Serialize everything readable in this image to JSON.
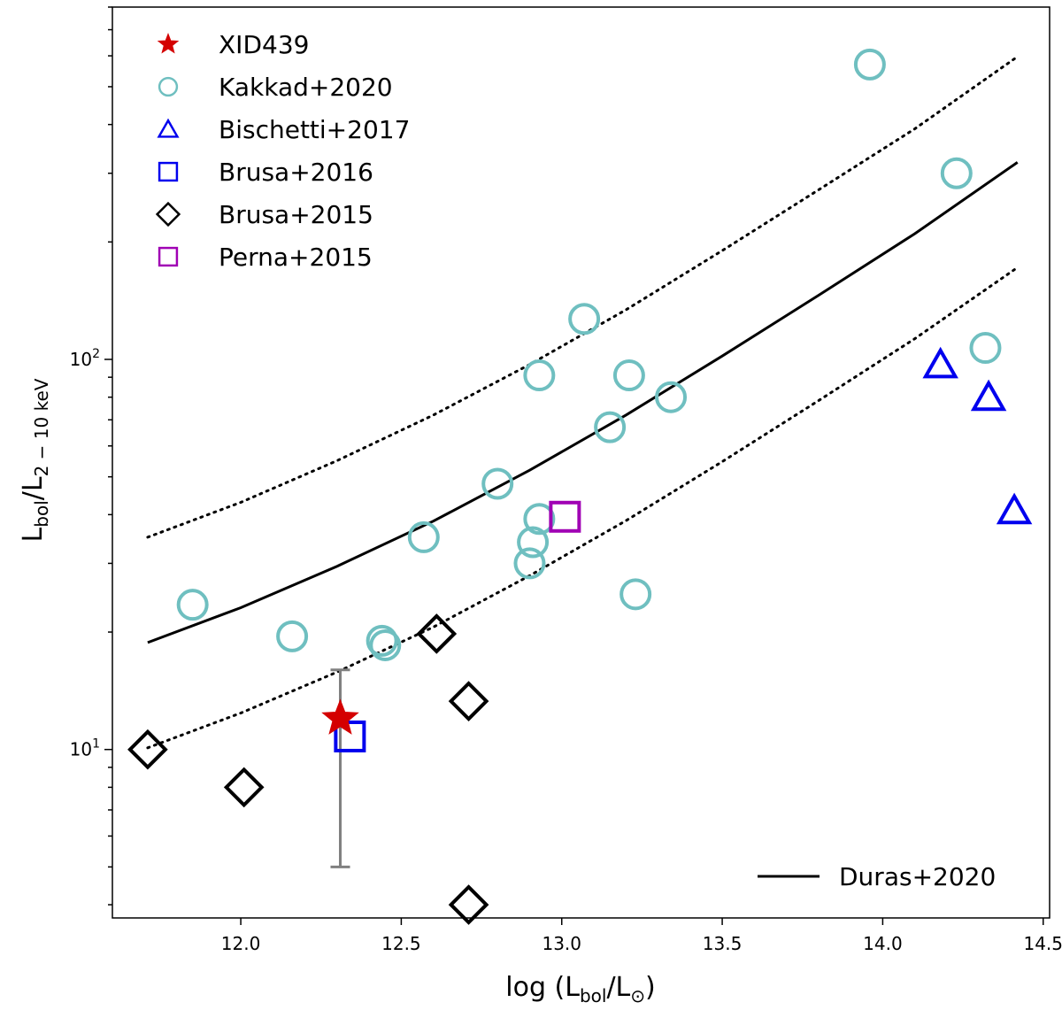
{
  "chart_data": {
    "type": "scatter",
    "xaxis": {
      "label_main": "log (L",
      "label_sub": "bol",
      "label_mid": "/L",
      "label_sun": "⊙",
      "label_end": ")",
      "range": [
        11.6,
        14.52
      ],
      "ticks": [
        12.0,
        12.5,
        13.0,
        13.5,
        14.0,
        14.5
      ],
      "tick_labels": [
        "12.0",
        "12.5",
        "13.0",
        "13.5",
        "14.0",
        "14.5"
      ]
    },
    "yaxis": {
      "scale": "log",
      "label_main": "L",
      "label_sub1": "bol",
      "label_mid": "/L",
      "label_sub2": "2 − 10 keV",
      "range": [
        3.7,
        800
      ],
      "major_ticks": [
        10,
        100
      ],
      "tick_base": [
        "10",
        "10"
      ],
      "tick_exp": [
        "1",
        "2"
      ]
    },
    "series": [
      {
        "name": "XID439",
        "marker": "star",
        "color": "#d40000",
        "points": [
          [
            12.31,
            12.0
          ]
        ],
        "error_y": [
          [
            12.31,
            5.0,
            16.0
          ]
        ],
        "error_color": "#808080"
      },
      {
        "name": "Kakkad+2020",
        "marker": "circle",
        "color": "#6fbfc0",
        "points": [
          [
            11.85,
            23.5
          ],
          [
            12.16,
            19.5
          ],
          [
            12.44,
            19.0
          ],
          [
            12.45,
            18.5
          ],
          [
            12.57,
            35.0
          ],
          [
            12.8,
            48.0
          ],
          [
            12.9,
            30.0
          ],
          [
            12.91,
            34.0
          ],
          [
            12.93,
            39.0
          ],
          [
            12.93,
            91.0
          ],
          [
            13.07,
            127.0
          ],
          [
            13.15,
            67.0
          ],
          [
            13.21,
            91.0
          ],
          [
            13.23,
            25.0
          ],
          [
            13.34,
            80.0
          ],
          [
            13.96,
            570.0
          ],
          [
            14.23,
            300.0
          ],
          [
            14.32,
            107.0
          ]
        ]
      },
      {
        "name": "Bischetti+2017",
        "marker": "triangle",
        "color": "#0000ee",
        "points": [
          [
            14.18,
            97.0
          ],
          [
            14.33,
            80.0
          ],
          [
            14.41,
            41.0
          ]
        ]
      },
      {
        "name": "Brusa+2016",
        "marker": "square",
        "color": "#0000ee",
        "points": [
          [
            12.34,
            10.8
          ]
        ]
      },
      {
        "name": "Brusa+2015",
        "marker": "diamond",
        "color": "#000000",
        "points": [
          [
            11.71,
            10.0
          ],
          [
            12.01,
            8.0
          ],
          [
            12.61,
            19.8
          ],
          [
            12.71,
            13.3
          ],
          [
            12.71,
            4.0
          ]
        ]
      },
      {
        "name": "Perna+2015",
        "marker": "square",
        "color": "#a000b4",
        "points": [
          [
            13.01,
            39.5
          ]
        ]
      }
    ],
    "lines": [
      {
        "name": "Duras+2020",
        "style": "solid",
        "color": "#000000",
        "x": [
          11.71,
          12.0,
          12.3,
          12.6,
          12.9,
          13.2,
          13.5,
          13.8,
          14.1,
          14.42
        ],
        "y": [
          18.8,
          23.1,
          29.5,
          38.5,
          52.0,
          72.0,
          102.0,
          146.0,
          210.0,
          320.0
        ]
      },
      {
        "name": "upper bound",
        "style": "dotted",
        "color": "#000000",
        "x": [
          11.71,
          12.0,
          12.3,
          12.6,
          12.9,
          13.2,
          13.5,
          13.8,
          14.1,
          14.42
        ],
        "y": [
          35.0,
          43.0,
          55.0,
          72.0,
          97.0,
          134.0,
          190.0,
          272.0,
          390.0,
          597.0
        ]
      },
      {
        "name": "lower bound",
        "style": "dotted",
        "color": "#000000",
        "x": [
          11.71,
          12.0,
          12.3,
          12.6,
          12.9,
          13.2,
          13.5,
          13.8,
          14.1,
          14.42
        ],
        "y": [
          10.1,
          12.4,
          15.8,
          20.6,
          27.9,
          38.6,
          54.7,
          78.4,
          113.0,
          172.0
        ]
      }
    ],
    "legend": {
      "position": "top-left",
      "entries": [
        "XID439",
        "Kakkad+2020",
        "Bischetti+2017",
        "Brusa+2016",
        "Brusa+2015",
        "Perna+2015"
      ]
    },
    "line_legend": {
      "position": "bottom-right",
      "label": "Duras+2020"
    }
  }
}
